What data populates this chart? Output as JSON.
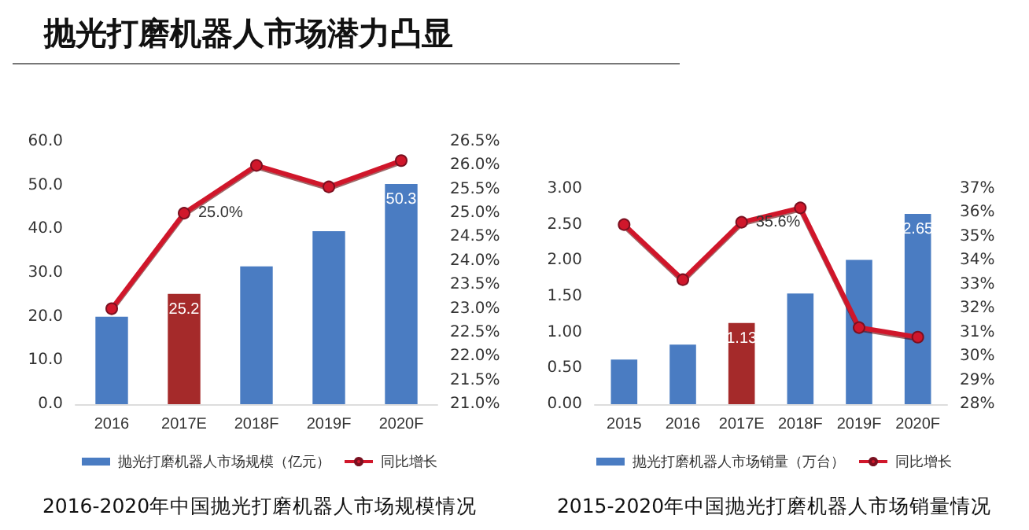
{
  "chart_data": [
    {
      "type": "bar",
      "title": "2016-2020年中国抛光打磨机器人市场规模情况",
      "annotations": [
        "抛光打磨机器人市场潜力凸显"
      ],
      "categories": [
        "2016",
        "2017E",
        "2018F",
        "2019F",
        "2020F"
      ],
      "series": [
        {
          "name": "抛光打磨机器人市场规模（亿元）",
          "color": "#4a7cc2",
          "colors": [
            "#4a7cc2",
            "#a52a2a",
            "#4a7cc2",
            "#4a7cc2",
            "#4a7cc2"
          ],
          "values": [
            20.0,
            25.2,
            31.5,
            39.5,
            50.3
          ],
          "value_labels": [
            null,
            "25.2",
            null,
            null,
            "50.3"
          ]
        },
        {
          "name": "同比增长",
          "type": "line",
          "axis": "y2",
          "color": "#d0172b",
          "values": [
            23.0,
            25.0,
            26.0,
            25.55,
            26.1
          ],
          "value_labels": [
            null,
            "25.0%",
            null,
            null,
            null
          ]
        }
      ],
      "ylim": [
        0,
        60
      ],
      "yticks": [
        {
          "value": 0,
          "label": "0.0"
        },
        {
          "value": 10,
          "label": "10.0"
        },
        {
          "value": 20,
          "label": "20.0"
        },
        {
          "value": 30,
          "label": "30.0"
        },
        {
          "value": 40,
          "label": "40.0"
        },
        {
          "value": 50,
          "label": "50.0"
        },
        {
          "value": 60,
          "label": "60.0"
        }
      ],
      "y2lim": [
        21,
        26.5
      ],
      "y2ticks": [
        {
          "value": 21,
          "label": "21.0%"
        },
        {
          "value": 21.5,
          "label": "21.5%"
        },
        {
          "value": 22,
          "label": "22.0%"
        },
        {
          "value": 22.5,
          "label": "22.5%"
        },
        {
          "value": 23,
          "label": "23.0%"
        },
        {
          "value": 23.5,
          "label": "23.5%"
        },
        {
          "value": 24,
          "label": "24.0%"
        },
        {
          "value": 24.5,
          "label": "24.5%"
        },
        {
          "value": 25,
          "label": "25.0%"
        },
        {
          "value": 25.5,
          "label": "25.5%"
        },
        {
          "value": 26,
          "label": "26.0%"
        },
        {
          "value": 26.5,
          "label": "26.5%"
        }
      ],
      "grid": false,
      "legend": "bottom",
      "marker": "circle",
      "line_style": "solid"
    },
    {
      "type": "bar",
      "title": "2015-2020年中国抛光打磨机器人市场销量情况",
      "categories": [
        "2015",
        "2016",
        "2017E",
        "2018F",
        "2019F",
        "2020F"
      ],
      "series": [
        {
          "name": "抛光打磨机器人市场销量（万台）",
          "color": "#4a7cc2",
          "colors": [
            "#4a7cc2",
            "#4a7cc2",
            "#a52a2a",
            "#4a7cc2",
            "#4a7cc2",
            "#4a7cc2"
          ],
          "values": [
            0.62,
            0.83,
            1.13,
            1.54,
            2.01,
            2.65
          ],
          "value_labels": [
            null,
            null,
            "1.13",
            null,
            null,
            "2.65"
          ]
        },
        {
          "name": "同比增长",
          "type": "line",
          "axis": "y2",
          "color": "#d0172b",
          "values": [
            35.5,
            33.2,
            35.6,
            36.2,
            31.2,
            30.8
          ],
          "value_labels": [
            null,
            null,
            "35.6%",
            null,
            null,
            null
          ]
        }
      ],
      "ylim": [
        0,
        3
      ],
      "yticks": [
        {
          "value": 0,
          "label": "0.00"
        },
        {
          "value": 0.5,
          "label": "0.50"
        },
        {
          "value": 1,
          "label": "1.00"
        },
        {
          "value": 1.5,
          "label": "1.50"
        },
        {
          "value": 2,
          "label": "2.00"
        },
        {
          "value": 2.5,
          "label": "2.50"
        },
        {
          "value": 3,
          "label": "3.00"
        }
      ],
      "y2lim": [
        28,
        37
      ],
      "y2ticks": [
        {
          "value": 28,
          "label": "28%"
        },
        {
          "value": 29,
          "label": "29%"
        },
        {
          "value": 30,
          "label": "30%"
        },
        {
          "value": 31,
          "label": "31%"
        },
        {
          "value": 32,
          "label": "32%"
        },
        {
          "value": 33,
          "label": "33%"
        },
        {
          "value": 34,
          "label": "34%"
        },
        {
          "value": 35,
          "label": "35%"
        },
        {
          "value": 36,
          "label": "36%"
        },
        {
          "value": 37,
          "label": "37%"
        }
      ],
      "grid": false,
      "legend": "bottom",
      "marker": "circle",
      "line_style": "solid"
    }
  ]
}
